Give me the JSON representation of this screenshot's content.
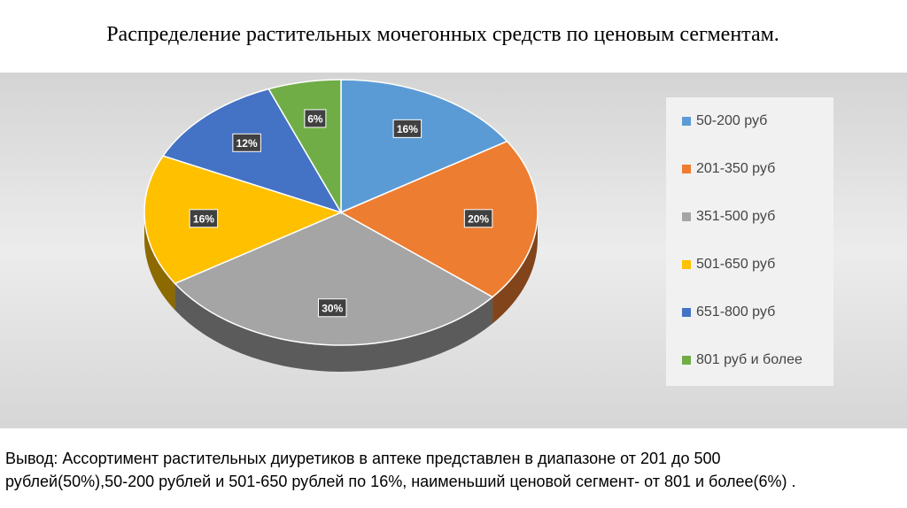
{
  "title": "Распределение растительных мочегонных средств по ценовым сегментам.",
  "chart_data": {
    "type": "pie",
    "title": "Распределение растительных мочегонных средств по ценовым сегментам.",
    "categories": [
      "50-200 руб",
      "201-350 руб",
      "351-500 руб",
      "501-650 руб",
      "651-800 руб",
      "801 руб и более"
    ],
    "values": [
      16,
      20,
      30,
      16,
      12,
      6
    ],
    "labels": [
      "16%",
      "20%",
      "30%",
      "16%",
      "12%",
      "6%"
    ],
    "colors": [
      "#5b9bd5",
      "#ed7d31",
      "#a5a5a5",
      "#ffc000",
      "#4472c4",
      "#70ad47"
    ],
    "legend_position": "right",
    "style": "3d"
  },
  "conclusion": {
    "line1": "Вывод: Ассортимент растительных диуретиков в аптеке представлен в диапазоне от 201 до 500",
    "line2": "рублей(50%),50-200 рублей и 501-650 рублей по 16%, наименьший ценовой сегмент- от 801 и более(6%) ."
  }
}
